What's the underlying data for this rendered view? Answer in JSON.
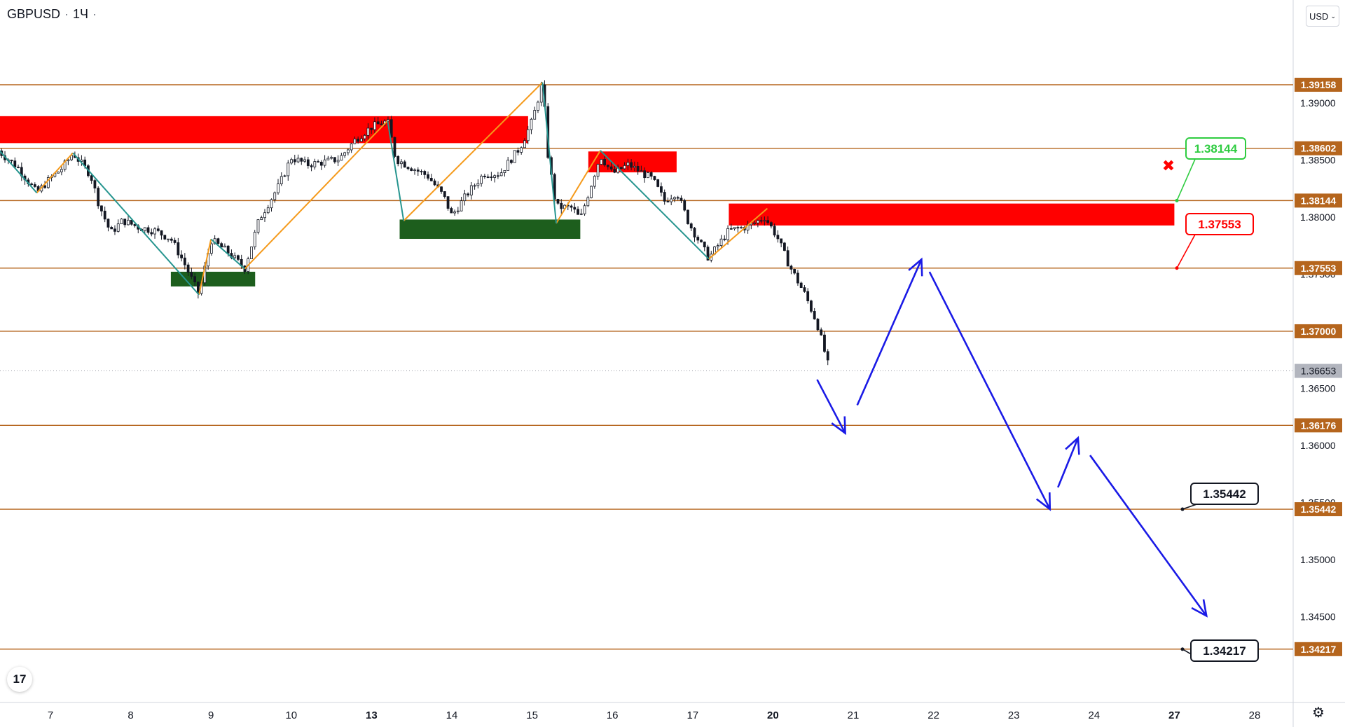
{
  "header": {
    "symbol": "GBPUSD",
    "interval": "1Ч",
    "dot": "·"
  },
  "currency_selector": {
    "label": "USD",
    "chevron": "⌄"
  },
  "logo_text": "17",
  "settings_icon": "⚙",
  "colors": {
    "level_line": "#b5651d",
    "level_label_bg": "#b5651d",
    "current_price_bg": "#b2b5be",
    "supply_zone": "#ff0000",
    "demand_zone": "#1d5e1d",
    "zigzag_orange": "#f59a1b",
    "zigzag_teal": "#26958f",
    "projection": "#1a1ae6",
    "target_green": "#2ecc40",
    "target_red": "#ff0000",
    "candle": "#131722"
  },
  "chart_data": {
    "type": "candlestick",
    "symbol": "GBPUSD",
    "timeframe": "1Ч",
    "ylim": [
      1.3375,
      1.399
    ],
    "price_ticks": [
      1.39,
      1.385,
      1.38,
      1.375,
      1.365,
      1.36,
      1.355,
      1.35,
      1.345
    ],
    "price_tick_labels": [
      "1.39000",
      "1.38500",
      "1.38000",
      "1.37500",
      "1.36500",
      "1.36000",
      "1.35500",
      "1.35000",
      "1.34500"
    ],
    "x_ticks": [
      {
        "day": 0,
        "label": "7",
        "bold": false
      },
      {
        "day": 1,
        "label": "8",
        "bold": false
      },
      {
        "day": 2,
        "label": "9",
        "bold": false
      },
      {
        "day": 3,
        "label": "10",
        "bold": false
      },
      {
        "day": 4,
        "label": "13",
        "bold": true
      },
      {
        "day": 5,
        "label": "14",
        "bold": false
      },
      {
        "day": 6,
        "label": "15",
        "bold": false
      },
      {
        "day": 7,
        "label": "16",
        "bold": false
      },
      {
        "day": 8,
        "label": "17",
        "bold": false
      },
      {
        "day": 9,
        "label": "20",
        "bold": true
      },
      {
        "day": 10,
        "label": "21",
        "bold": false
      },
      {
        "day": 11,
        "label": "22",
        "bold": false
      },
      {
        "day": 12,
        "label": "23",
        "bold": false
      },
      {
        "day": 13,
        "label": "24",
        "bold": false
      },
      {
        "day": 14,
        "label": "27",
        "bold": true
      },
      {
        "day": 15,
        "label": "28",
        "bold": false
      }
    ],
    "levels": [
      {
        "price": 1.39158,
        "label": "1.39158"
      },
      {
        "price": 1.38602,
        "label": "1.38602"
      },
      {
        "price": 1.38144,
        "label": "1.38144"
      },
      {
        "price": 1.37553,
        "label": "1.37553"
      },
      {
        "price": 1.37,
        "label": "1.37000"
      },
      {
        "price": 1.36176,
        "label": "1.36176"
      },
      {
        "price": 1.35442,
        "label": "1.35442"
      },
      {
        "price": 1.34217,
        "label": "1.34217"
      }
    ],
    "current_price": {
      "price": 1.36653,
      "label": "1.36653"
    },
    "zones": [
      {
        "kind": "supply",
        "x0": -0.65,
        "x1": 5.95,
        "y0": 1.38883,
        "y1": 1.38647
      },
      {
        "kind": "supply",
        "x0": 6.7,
        "x1": 7.8,
        "y0": 1.38574,
        "y1": 1.38391
      },
      {
        "kind": "supply",
        "x0": 8.45,
        "x1": 14.0,
        "y0": 1.38118,
        "y1": 1.37926
      },
      {
        "kind": "demand",
        "x0": 1.5,
        "x1": 2.55,
        "y0": 1.37521,
        "y1": 1.37392
      },
      {
        "kind": "demand",
        "x0": 4.35,
        "x1": 6.6,
        "y0": 1.37978,
        "y1": 1.37809
      }
    ],
    "zigzag_orange": [
      [
        [
          -0.17,
          1.38212
        ],
        [
          0.28,
          1.38561
        ]
      ],
      [
        [
          1.85,
          1.3732
        ],
        [
          2.0,
          1.37806
        ]
      ],
      [
        [
          2.42,
          1.37547
        ],
        [
          4.2,
          1.38843
        ]
      ],
      [
        [
          4.4,
          1.37967
        ],
        [
          6.13,
          1.39179
        ]
      ],
      [
        [
          6.3,
          1.37945
        ],
        [
          6.85,
          1.38582
        ]
      ],
      [
        [
          8.2,
          1.37633
        ],
        [
          8.93,
          1.38075
        ]
      ]
    ],
    "zigzag_teal": [
      [
        [
          -0.65,
          1.38594
        ],
        [
          -0.17,
          1.38212
        ]
      ],
      [
        [
          0.28,
          1.38561
        ],
        [
          1.85,
          1.3732
        ]
      ],
      [
        [
          2.0,
          1.37806
        ],
        [
          2.42,
          1.37547
        ]
      ],
      [
        [
          4.2,
          1.38843
        ],
        [
          4.4,
          1.37967
        ]
      ],
      [
        [
          6.13,
          1.39179
        ],
        [
          6.3,
          1.37945
        ]
      ],
      [
        [
          6.85,
          1.38582
        ],
        [
          8.2,
          1.37633
        ]
      ]
    ],
    "projection_path": [
      [
        [
          9.55,
          1.36577
        ],
        [
          9.9,
          1.36108
        ]
      ],
      [
        [
          10.05,
          1.36353
        ],
        [
          10.85,
          1.37629
        ]
      ],
      [
        [
          10.95,
          1.3752
        ],
        [
          12.45,
          1.35442
        ]
      ],
      [
        [
          12.55,
          1.35633
        ],
        [
          12.8,
          1.36066
        ]
      ],
      [
        [
          12.95,
          1.35914
        ],
        [
          14.4,
          1.34508
        ]
      ]
    ],
    "price_path": [
      [
        -0.65,
        1.3858
      ],
      [
        -0.4,
        1.3843
      ],
      [
        -0.17,
        1.3821
      ],
      [
        0.0,
        1.3834
      ],
      [
        0.15,
        1.3843
      ],
      [
        0.28,
        1.3856
      ],
      [
        0.5,
        1.3837
      ],
      [
        0.6,
        1.3812
      ],
      [
        0.75,
        1.3786
      ],
      [
        0.9,
        1.3797
      ],
      [
        1.1,
        1.3791
      ],
      [
        1.3,
        1.3788
      ],
      [
        1.5,
        1.3781
      ],
      [
        1.65,
        1.3762
      ],
      [
        1.85,
        1.3732
      ],
      [
        2.0,
        1.378
      ],
      [
        2.2,
        1.377
      ],
      [
        2.42,
        1.3755
      ],
      [
        2.6,
        1.3798
      ],
      [
        2.85,
        1.3828
      ],
      [
        3.0,
        1.3852
      ],
      [
        3.2,
        1.3846
      ],
      [
        3.4,
        1.3848
      ],
      [
        3.6,
        1.3851
      ],
      [
        3.8,
        1.3868
      ],
      [
        4.0,
        1.3879
      ],
      [
        4.2,
        1.3884
      ],
      [
        4.3,
        1.3851
      ],
      [
        4.45,
        1.3845
      ],
      [
        4.7,
        1.3836
      ],
      [
        4.9,
        1.3818
      ],
      [
        5.0,
        1.3801
      ],
      [
        5.2,
        1.3821
      ],
      [
        5.4,
        1.3838
      ],
      [
        5.6,
        1.3838
      ],
      [
        5.85,
        1.3861
      ],
      [
        6.0,
        1.3884
      ],
      [
        6.13,
        1.3918
      ],
      [
        6.2,
        1.3852
      ],
      [
        6.3,
        1.3809
      ],
      [
        6.5,
        1.3808
      ],
      [
        6.6,
        1.3798
      ],
      [
        6.85,
        1.3854
      ],
      [
        7.0,
        1.3838
      ],
      [
        7.2,
        1.3846
      ],
      [
        7.5,
        1.3833
      ],
      [
        7.65,
        1.3814
      ],
      [
        7.8,
        1.3822
      ],
      [
        7.95,
        1.3795
      ],
      [
        8.2,
        1.3764
      ],
      [
        8.45,
        1.3788
      ],
      [
        8.7,
        1.3792
      ],
      [
        8.9,
        1.38
      ],
      [
        9.05,
        1.3783
      ],
      [
        9.2,
        1.3758
      ],
      [
        9.4,
        1.3732
      ],
      [
        9.55,
        1.3707
      ],
      [
        9.7,
        1.3667
      ]
    ]
  }
}
